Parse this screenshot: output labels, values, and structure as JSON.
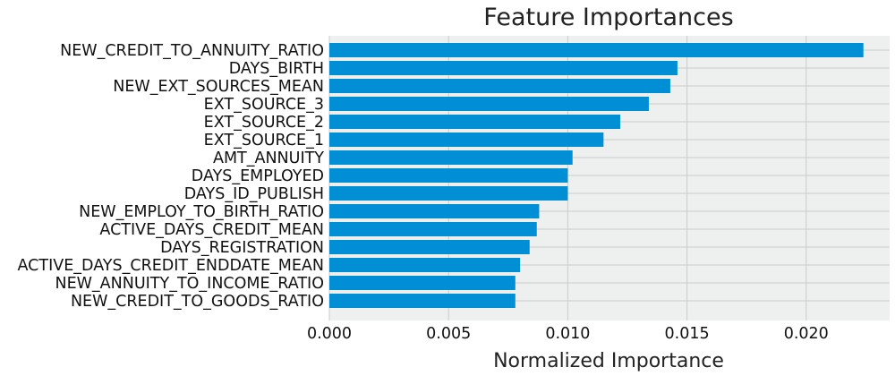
{
  "chart_data": {
    "type": "bar",
    "orientation": "horizontal",
    "title": "Feature Importances",
    "xlabel": "Normalized Importance",
    "ylabel": "",
    "categories": [
      "NEW_CREDIT_TO_ANNUITY_RATIO",
      "DAYS_BIRTH",
      "NEW_EXT_SOURCES_MEAN",
      "EXT_SOURCE_3",
      "EXT_SOURCE_2",
      "EXT_SOURCE_1",
      "AMT_ANNUITY",
      "DAYS_EMPLOYED",
      "DAYS_ID_PUBLISH",
      "NEW_EMPLOY_TO_BIRTH_RATIO",
      "ACTIVE_DAYS_CREDIT_MEAN",
      "DAYS_REGISTRATION",
      "ACTIVE_DAYS_CREDIT_ENDDATE_MEAN",
      "NEW_ANNUITY_TO_INCOME_RATIO",
      "NEW_CREDIT_TO_GOODS_RATIO"
    ],
    "values": [
      0.0224,
      0.0146,
      0.0143,
      0.0134,
      0.0122,
      0.0115,
      0.0102,
      0.01,
      0.01,
      0.0088,
      0.0087,
      0.0084,
      0.008,
      0.0078,
      0.0078
    ],
    "xlim": [
      0,
      0.0235
    ],
    "xticks": [
      "0.000",
      "0.005",
      "0.010",
      "0.015",
      "0.020"
    ],
    "xtick_values": [
      0,
      0.005,
      0.01,
      0.015,
      0.02
    ],
    "grid": true,
    "bar_color": "#008fd5",
    "plot_background": "#eef0ef",
    "grid_color": "#cbcbcb"
  }
}
